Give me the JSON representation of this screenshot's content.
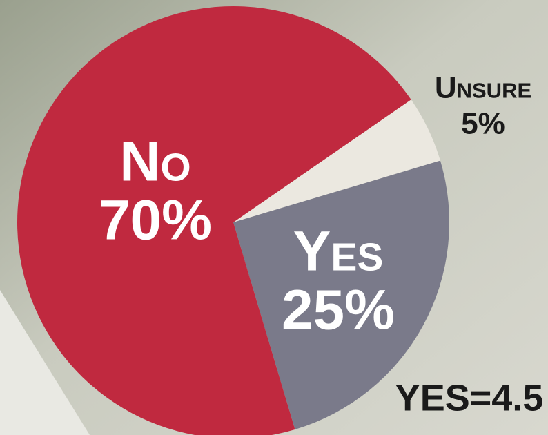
{
  "chart_data": {
    "type": "pie",
    "categories": [
      "Unsure",
      "Yes",
      "No"
    ],
    "values": [
      5,
      25,
      70
    ],
    "value_labels": [
      "5%",
      "25%",
      "70%"
    ],
    "colors": [
      "#ebe8e0",
      "#7a7a8a",
      "#c0293f"
    ],
    "annotation": "YES=4.5"
  }
}
